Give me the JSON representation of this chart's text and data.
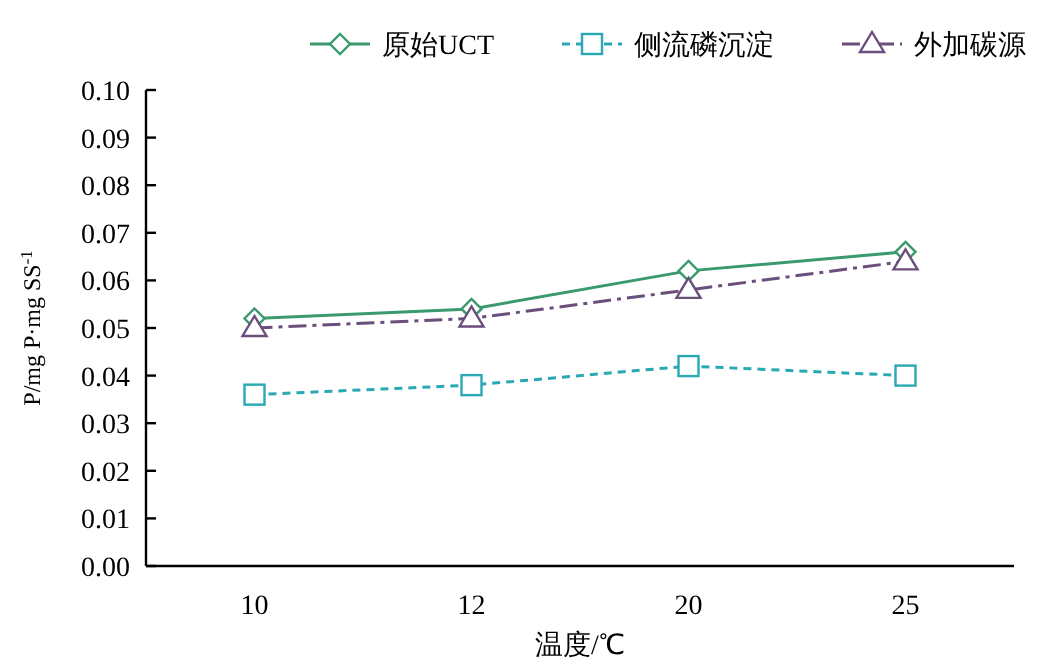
{
  "chart_data": {
    "type": "line",
    "xlabel": "温度/℃",
    "ylabel": "P/mg P·mg SS$^{-1}$",
    "categories": [
      "10",
      "12",
      "20",
      "25"
    ],
    "ylim": [
      0,
      0.1
    ],
    "yticks": [
      {
        "value": 0,
        "label": "0.00"
      },
      {
        "value": 0.01,
        "label": "0.01"
      },
      {
        "value": 0.02,
        "label": "0.02"
      },
      {
        "value": 0.03,
        "label": "0.03"
      },
      {
        "value": 0.04,
        "label": "0.04"
      },
      {
        "value": 0.05,
        "label": "0.05"
      },
      {
        "value": 0.06,
        "label": "0.06"
      },
      {
        "value": 0.07,
        "label": "0.07"
      },
      {
        "value": 0.08,
        "label": "0.08"
      },
      {
        "value": 0.09,
        "label": "0.09"
      },
      {
        "value": 0.1,
        "label": "0.10"
      }
    ],
    "grid": false,
    "legend": "top",
    "series": [
      {
        "name": "原始UCT",
        "color": "#3a9a6e",
        "marker": "diamond",
        "line_style": "solid",
        "values": [
          0.052,
          0.054,
          0.062,
          0.066
        ]
      },
      {
        "name": "侧流磷沉淀",
        "color": "#2aa8b4",
        "marker": "square",
        "line_style": "dashed",
        "values": [
          0.036,
          0.038,
          0.042,
          0.04
        ]
      },
      {
        "name": "外加碳源",
        "color": "#6a4e7c",
        "marker": "triangle",
        "line_style": "dashdot",
        "values": [
          0.05,
          0.052,
          0.058,
          0.064
        ]
      }
    ]
  }
}
